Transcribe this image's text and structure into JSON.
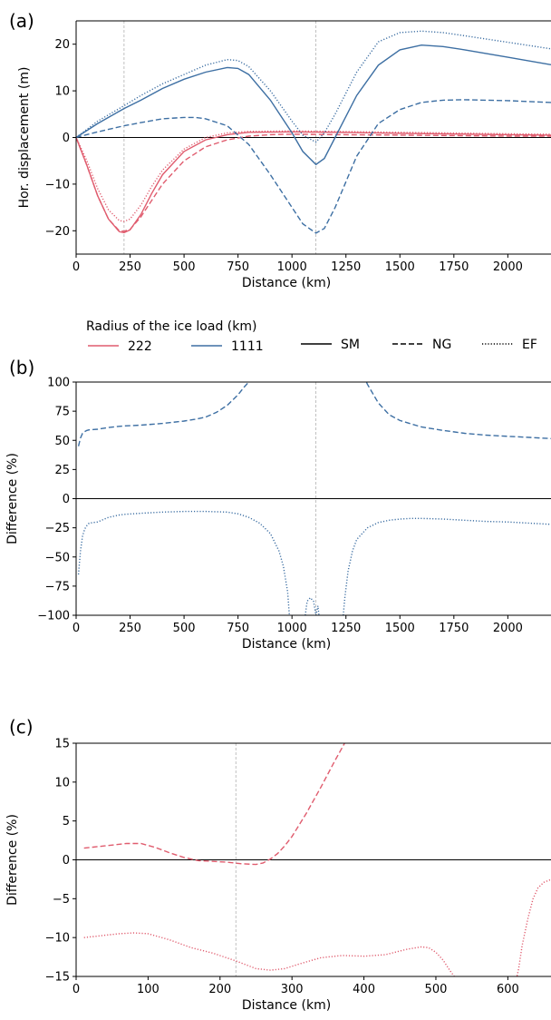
{
  "colors": {
    "r222": "#e05c6e",
    "r1111": "#3d6fa3",
    "zero": "#000000",
    "vline": "#b0b0b0"
  },
  "legend": {
    "title": "Radius of the ice load (km)",
    "radii": [
      {
        "label": "222",
        "color": "#e05c6e"
      },
      {
        "label": "1111",
        "color": "#3d6fa3"
      }
    ],
    "models": [
      {
        "label": "SM",
        "style": "solid"
      },
      {
        "label": "NG",
        "style": "dashed"
      },
      {
        "label": "EF",
        "style": "dotted"
      }
    ]
  },
  "chart_data": [
    {
      "panel": "(a)",
      "type": "line",
      "xlabel": "Distance (km)",
      "ylabel": "Hor. displacement (m)",
      "xlim": [
        0,
        2200
      ],
      "ylim": [
        -25,
        25
      ],
      "xticks": [
        0,
        250,
        500,
        750,
        1000,
        1250,
        1500,
        1750,
        2000
      ],
      "yticks": [
        -20,
        -10,
        0,
        10,
        20
      ],
      "ytick_labels": [
        "−20",
        "−10",
        "0",
        "10",
        "20"
      ],
      "vlines": [
        222,
        1111
      ],
      "zero_line": true,
      "series": [
        {
          "radius": "222",
          "model": "SM",
          "color": "#e05c6e",
          "style": "solid",
          "x": [
            0,
            50,
            100,
            150,
            200,
            222,
            250,
            300,
            350,
            400,
            500,
            600,
            700,
            800,
            1000,
            1200,
            1500,
            2000,
            2200
          ],
          "y": [
            0,
            -6,
            -12.5,
            -17.5,
            -20.2,
            -20.4,
            -19.8,
            -16.5,
            -12,
            -8,
            -3,
            -0.5,
            0.6,
            1.1,
            1.2,
            1.1,
            0.9,
            0.6,
            0.5
          ]
        },
        {
          "radius": "222",
          "model": "NG",
          "color": "#e05c6e",
          "style": "dashed",
          "x": [
            0,
            50,
            100,
            150,
            200,
            222,
            250,
            300,
            350,
            400,
            500,
            600,
            700,
            800,
            900,
            1000,
            1200,
            1500,
            2000,
            2200
          ],
          "y": [
            0,
            -6,
            -12.5,
            -17.5,
            -20,
            -20.1,
            -19.7,
            -17,
            -13.5,
            -10,
            -5,
            -2,
            -0.5,
            0.3,
            0.6,
            0.7,
            0.6,
            0.5,
            0.3,
            0.3
          ]
        },
        {
          "radius": "222",
          "model": "EF",
          "color": "#e05c6e",
          "style": "dotted",
          "x": [
            0,
            50,
            100,
            150,
            200,
            222,
            250,
            300,
            350,
            400,
            500,
            600,
            700,
            800,
            1000,
            1200,
            1500,
            2000,
            2200
          ],
          "y": [
            0,
            -5,
            -11,
            -15.5,
            -17.8,
            -18,
            -17.5,
            -14.5,
            -10.5,
            -7,
            -2.5,
            0,
            1,
            1.3,
            1.4,
            1.3,
            1.1,
            0.8,
            0.7
          ]
        },
        {
          "radius": "1111",
          "model": "SM",
          "color": "#3d6fa3",
          "style": "solid",
          "x": [
            0,
            100,
            222,
            300,
            400,
            500,
            600,
            700,
            750,
            800,
            900,
            1000,
            1050,
            1111,
            1150,
            1200,
            1300,
            1400,
            1500,
            1600,
            1700,
            1800,
            2000,
            2200
          ],
          "y": [
            0,
            3,
            6.2,
            8,
            10.5,
            12.5,
            14,
            15,
            14.8,
            13.5,
            8,
            1,
            -3,
            -5.8,
            -4.5,
            0,
            9,
            15.5,
            18.8,
            19.8,
            19.5,
            18.8,
            17.2,
            15.6
          ]
        },
        {
          "radius": "1111",
          "model": "NG",
          "color": "#3d6fa3",
          "style": "dashed",
          "x": [
            0,
            100,
            222,
            300,
            400,
            500,
            550,
            600,
            700,
            800,
            900,
            1000,
            1050,
            1111,
            1150,
            1200,
            1300,
            1400,
            1500,
            1600,
            1700,
            1800,
            2000,
            2200
          ],
          "y": [
            0,
            1.2,
            2.5,
            3.2,
            4,
            4.3,
            4.3,
            4,
            2.5,
            -1.5,
            -8,
            -15,
            -18.5,
            -20.5,
            -19.5,
            -15,
            -4,
            3,
            6,
            7.5,
            8,
            8.1,
            7.9,
            7.5
          ]
        },
        {
          "radius": "1111",
          "model": "EF",
          "color": "#3d6fa3",
          "style": "dotted",
          "x": [
            0,
            100,
            222,
            300,
            400,
            500,
            600,
            700,
            750,
            800,
            900,
            1000,
            1050,
            1111,
            1150,
            1200,
            1300,
            1400,
            1500,
            1600,
            1700,
            1800,
            2000,
            2200
          ],
          "y": [
            0,
            3.5,
            6.8,
            9,
            11.5,
            13.5,
            15.5,
            16.7,
            16.5,
            15.2,
            10,
            3.5,
            0.5,
            -1,
            1,
            5,
            14,
            20.5,
            22.5,
            22.8,
            22.5,
            21.8,
            20.4,
            19
          ]
        }
      ]
    },
    {
      "panel": "(b)",
      "type": "line",
      "xlabel": "Distance (km)",
      "ylabel": "Difference (%)",
      "xlim": [
        0,
        2200
      ],
      "ylim": [
        -100,
        100
      ],
      "xticks": [
        0,
        250,
        500,
        750,
        1000,
        1250,
        1500,
        1750,
        2000
      ],
      "yticks": [
        -100,
        -75,
        -50,
        -25,
        0,
        25,
        50,
        75,
        100
      ],
      "ytick_labels": [
        "−100",
        "−75",
        "−50",
        "−25",
        "0",
        "25",
        "50",
        "75",
        "100"
      ],
      "vlines": [
        1111
      ],
      "zero_line": true,
      "series": [
        {
          "radius": "1111",
          "model": "NG",
          "color": "#3d6fa3",
          "style": "dashed",
          "x": [
            11,
            20,
            30,
            40,
            50,
            60,
            80,
            100,
            150,
            200,
            222,
            300,
            400,
            500,
            550,
            600,
            650,
            700,
            750,
            780,
            800,
            820
          ],
          "y": [
            45,
            52,
            56,
            57.5,
            58.5,
            59,
            59.3,
            59.5,
            61,
            62,
            62.3,
            63,
            64.5,
            66.5,
            68,
            70,
            74,
            80,
            89,
            96,
            100,
            106
          ]
        },
        {
          "radius": "1111",
          "model": "NG",
          "color": "#3d6fa3",
          "style": "dashed",
          "x": [
            1330,
            1350,
            1400,
            1450,
            1500,
            1600,
            1700,
            1800,
            1900,
            2000,
            2100,
            2200
          ],
          "y": [
            106,
            98,
            82,
            72,
            67,
            61.5,
            58.5,
            56,
            54.5,
            53.5,
            52.5,
            51.5
          ]
        },
        {
          "radius": "1111",
          "model": "EF",
          "color": "#3d6fa3",
          "style": "dotted",
          "x": [
            11,
            20,
            30,
            40,
            50,
            60,
            80,
            100,
            150,
            200,
            222,
            300,
            400,
            500,
            600,
            700,
            750,
            800,
            850,
            900,
            940,
            960,
            980,
            990
          ],
          "y": [
            -65,
            -45,
            -32,
            -26,
            -23,
            -21,
            -20.5,
            -20,
            -16,
            -14,
            -13.5,
            -12.5,
            -11.5,
            -11,
            -11,
            -11.5,
            -13,
            -16,
            -21,
            -30,
            -45,
            -58,
            -80,
            -105
          ]
        },
        {
          "radius": "1111",
          "model": "EF",
          "color": "#3d6fa3",
          "style": "dotted",
          "x": [
            1058,
            1070,
            1085,
            1100,
            1111,
            1120,
            1128
          ],
          "y": [
            -105,
            -88,
            -85,
            -88,
            -100,
            -92,
            -105
          ]
        },
        {
          "radius": "1111",
          "model": "EF",
          "color": "#3d6fa3",
          "style": "dotted",
          "x": [
            1235,
            1245,
            1260,
            1280,
            1300,
            1350,
            1400,
            1450,
            1500,
            1550,
            1600,
            1700,
            1800,
            1900,
            2000,
            2100,
            2200
          ],
          "y": [
            -105,
            -85,
            -62,
            -45,
            -35,
            -25,
            -20.5,
            -18.5,
            -17.5,
            -17,
            -17,
            -17.5,
            -18.5,
            -19.5,
            -20,
            -21,
            -22
          ]
        }
      ]
    },
    {
      "panel": "(c)",
      "type": "line",
      "xlabel": "Distance (km)",
      "ylabel": "Difference (%)",
      "xlim": [
        0,
        660
      ],
      "ylim": [
        -15,
        15
      ],
      "xticks": [
        0,
        100,
        200,
        300,
        400,
        500,
        600
      ],
      "yticks": [
        -15,
        -10,
        -5,
        0,
        5,
        10,
        15
      ],
      "ytick_labels": [
        "−15",
        "−10",
        "−5",
        "0",
        "5",
        "10",
        "15"
      ],
      "vlines": [
        222
      ],
      "zero_line": true,
      "series": [
        {
          "radius": "222",
          "model": "NG",
          "color": "#e05c6e",
          "style": "dashed",
          "x": [
            11,
            40,
            70,
            90,
            110,
            130,
            150,
            170,
            190,
            210,
            230,
            250,
            260,
            270,
            280,
            290,
            300,
            320,
            340,
            360,
            375
          ],
          "y": [
            1.5,
            1.8,
            2.1,
            2.1,
            1.6,
            0.9,
            0.3,
            -0.1,
            -0.2,
            -0.3,
            -0.5,
            -0.6,
            -0.4,
            0.1,
            0.8,
            1.8,
            3,
            6,
            9.3,
            12.8,
            15.3
          ]
        },
        {
          "radius": "222",
          "model": "EF",
          "color": "#e05c6e",
          "style": "dotted",
          "x": [
            11,
            40,
            60,
            80,
            100,
            130,
            160,
            190,
            222,
            250,
            270,
            290,
            310,
            340,
            370,
            400,
            430,
            460,
            480,
            490,
            500,
            510,
            520,
            528
          ],
          "y": [
            -10,
            -9.7,
            -9.5,
            -9.4,
            -9.5,
            -10.3,
            -11.3,
            -12,
            -13,
            -14,
            -14.2,
            -14,
            -13.4,
            -12.6,
            -12.3,
            -12.4,
            -12.2,
            -11.5,
            -11.2,
            -11.3,
            -11.9,
            -12.9,
            -14.3,
            -15.3
          ]
        },
        {
          "radius": "222",
          "model": "EF",
          "color": "#e05c6e",
          "style": "dotted",
          "x": [
            612,
            615,
            620,
            628,
            635,
            642,
            650,
            658,
            662
          ],
          "y": [
            -15.3,
            -14,
            -11,
            -7.5,
            -5,
            -3.6,
            -2.9,
            -2.6,
            -2.6
          ]
        }
      ]
    }
  ]
}
